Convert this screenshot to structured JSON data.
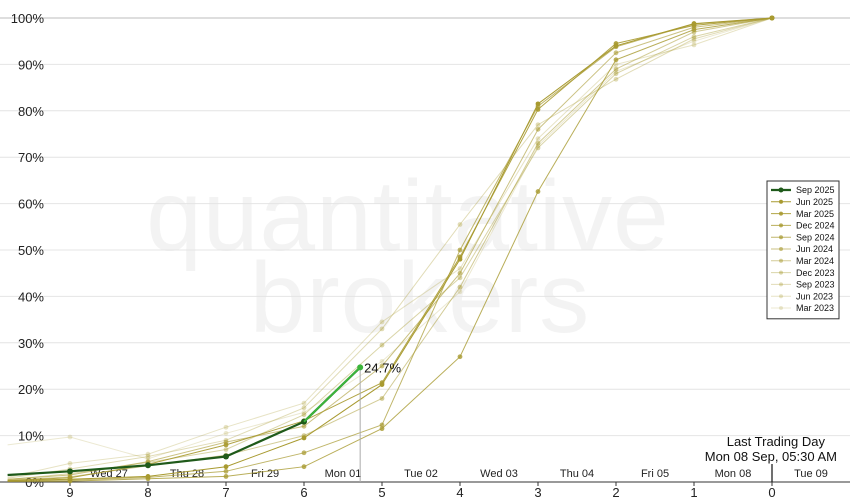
{
  "watermark": {
    "line1": "quantitative",
    "line2": "brokers"
  },
  "chart_data": {
    "type": "line",
    "x_direction": "descending",
    "xlim": [
      9.8,
      -0.8
    ],
    "ylim": [
      0,
      100
    ],
    "y_unit": "%",
    "yticks": [
      0,
      10,
      20,
      30,
      40,
      50,
      60,
      70,
      80,
      90,
      100
    ],
    "ytick_labels": [
      "0%",
      "10%",
      "20%",
      "30%",
      "40%",
      "50%",
      "60%",
      "70%",
      "80%",
      "90%",
      "100%"
    ],
    "xticks": [
      9,
      8,
      7,
      6,
      5,
      4,
      3,
      2,
      1,
      0
    ],
    "xtick_labels": [
      "9",
      "8",
      "7",
      "6",
      "5",
      "4",
      "3",
      "2",
      "1",
      "0"
    ],
    "day_labels": [
      {
        "label": "Wed 27",
        "x": 8.5
      },
      {
        "label": "Thu 28",
        "x": 7.5
      },
      {
        "label": "Fri 29",
        "x": 6.5
      },
      {
        "label": "Mon 01",
        "x": 5.5
      },
      {
        "label": "Tue 02",
        "x": 4.5
      },
      {
        "label": "Wed 03",
        "x": 3.5
      },
      {
        "label": "Thu 04",
        "x": 2.5
      },
      {
        "label": "Fri 05",
        "x": 1.5
      },
      {
        "label": "Mon 08",
        "x": 0.5
      },
      {
        "label": "Tue 09",
        "x": -0.5
      }
    ],
    "current_marker": {
      "x": 5.28,
      "y": 24.7,
      "label": "24.7%"
    },
    "last_trading_day": {
      "line1": "Last Trading Day",
      "line2": "Mon 08 Sep, 05:30 AM",
      "x": 0
    },
    "legend_position": "right",
    "grid": "horizontal",
    "series": [
      {
        "name": "Sep 2025",
        "color": "#1f5a1a",
        "highlight": true,
        "x": [
          9.8,
          9,
          8,
          7,
          6,
          5.28
        ],
        "y": [
          1.5,
          2.3,
          3.6,
          5.5,
          13.0,
          24.7
        ]
      },
      {
        "name": "Jun 2025",
        "color": "#a89a30",
        "opacity": 1.0,
        "x": [
          9.8,
          9,
          8,
          7,
          6,
          5,
          4,
          3,
          2,
          1,
          0
        ],
        "y": [
          0.3,
          0.6,
          1.2,
          3.3,
          9.5,
          21.0,
          48.0,
          81.5,
          94.0,
          98.8,
          100
        ]
      },
      {
        "name": "Mar 2025",
        "color": "#a89a30",
        "opacity": 0.9,
        "x": [
          9.8,
          9,
          8,
          7,
          6,
          5,
          4,
          3,
          2,
          1,
          0
        ],
        "y": [
          0.3,
          0.9,
          3.8,
          8.0,
          13.2,
          21.4,
          48.5,
          80.3,
          94.5,
          98.4,
          100
        ]
      },
      {
        "name": "Dec 2024",
        "color": "#a89a30",
        "opacity": 0.8,
        "x": [
          9.8,
          9,
          8,
          7,
          6,
          5,
          4,
          3,
          2,
          1,
          0
        ],
        "y": [
          0.1,
          0.2,
          0.7,
          1.2,
          3.3,
          11.5,
          27.0,
          62.6,
          91.0,
          97.5,
          100
        ]
      },
      {
        "name": "Sep 2024",
        "color": "#a89a30",
        "opacity": 0.72,
        "x": [
          9.8,
          9,
          8,
          7,
          6,
          5,
          4,
          3,
          2,
          1,
          0
        ],
        "y": [
          0.2,
          0.4,
          1.0,
          2.3,
          6.3,
          12.3,
          50.0,
          81.0,
          93.8,
          98.7,
          100
        ]
      },
      {
        "name": "Jun 2024",
        "color": "#a89a30",
        "opacity": 0.6,
        "x": [
          9.8,
          9,
          8,
          7,
          6,
          5,
          4,
          3,
          2,
          1,
          0
        ],
        "y": [
          0.6,
          1.5,
          4.4,
          8.6,
          12.0,
          25.0,
          45.0,
          76.0,
          92.5,
          98.0,
          100
        ]
      },
      {
        "name": "Mar 2024",
        "color": "#a89a30",
        "opacity": 0.5,
        "x": [
          9.8,
          9,
          8,
          7,
          6,
          5,
          4,
          3,
          2,
          1,
          0
        ],
        "y": [
          0.4,
          1.1,
          3.5,
          5.8,
          10.0,
          18.0,
          42.0,
          73.0,
          89.0,
          97.0,
          100
        ]
      },
      {
        "name": "Dec 2023",
        "color": "#a89a30",
        "opacity": 0.42,
        "x": [
          9.8,
          9,
          8,
          7,
          6,
          5,
          4,
          3,
          2,
          1,
          0
        ],
        "y": [
          0.5,
          1.8,
          4.2,
          7.0,
          14.5,
          29.5,
          44.0,
          72.0,
          88.0,
          96.0,
          100
        ]
      },
      {
        "name": "Sep 2023",
        "color": "#a89a30",
        "opacity": 0.35,
        "x": [
          9.8,
          9,
          8,
          7,
          6,
          5,
          4,
          3,
          2,
          1,
          0
        ],
        "y": [
          0.8,
          2.8,
          5.5,
          9.0,
          16.0,
          33.0,
          55.5,
          77.0,
          86.8,
          95.5,
          100
        ]
      },
      {
        "name": "Jun 2023",
        "color": "#a89a30",
        "opacity": 0.28,
        "x": [
          9.8,
          9,
          8,
          7,
          6,
          5,
          4,
          3,
          2,
          1,
          0
        ],
        "y": [
          1.0,
          4.0,
          6.0,
          11.8,
          17.0,
          34.5,
          46.0,
          74.0,
          90.0,
          94.2,
          100
        ]
      },
      {
        "name": "Mar 2023",
        "color": "#a89a30",
        "opacity": 0.22,
        "x": [
          9.8,
          9,
          8,
          7,
          6,
          5,
          4,
          3,
          2,
          1,
          0
        ],
        "y": [
          8.0,
          9.7,
          5.0,
          10.5,
          15.0,
          26.0,
          41.0,
          72.5,
          88.5,
          95.0,
          100
        ]
      }
    ]
  }
}
